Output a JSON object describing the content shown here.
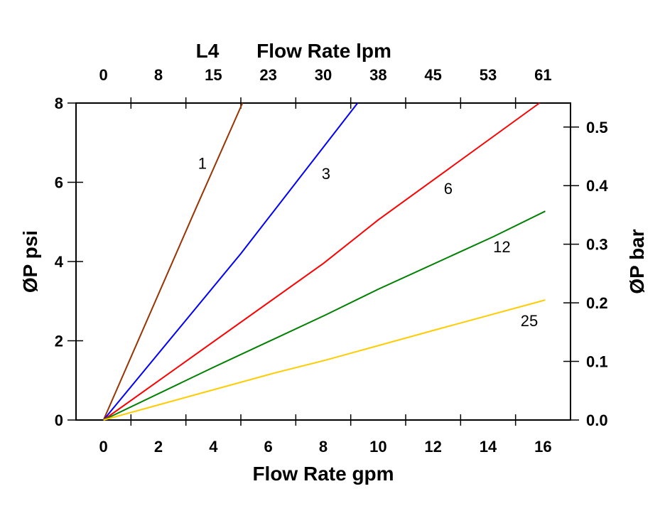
{
  "chart_data": {
    "type": "line",
    "title": "L4",
    "xlabel": "Flow Rate gpm",
    "x2label": "Flow Rate lpm",
    "ylabel": "ØP psi",
    "y2label": "ØP bar",
    "xlim": [
      -1,
      17
    ],
    "ylim": [
      0,
      8
    ],
    "y2lim": [
      0,
      0.541
    ],
    "grid": false,
    "x_ticks": [
      0,
      2,
      4,
      6,
      8,
      10,
      12,
      14,
      16
    ],
    "x_tick_labels": [
      "0",
      "2",
      "4",
      "6",
      "8",
      "10",
      "12",
      "14",
      "16"
    ],
    "x2_tick_labels": [
      "0",
      "8",
      "15",
      "23",
      "30",
      "38",
      "45",
      "53",
      "61"
    ],
    "y_ticks": [
      0,
      2,
      4,
      6,
      8
    ],
    "y_tick_labels": [
      "0",
      "2",
      "4",
      "6",
      "8"
    ],
    "y2_ticks": [
      0.0,
      0.1,
      0.2,
      0.3,
      0.4,
      0.5
    ],
    "y2_tick_labels": [
      "0.0",
      "0.1",
      "0.2",
      "0.3",
      "0.4",
      "0.5"
    ],
    "series": [
      {
        "name": "1",
        "color": "#993300",
        "points": [
          [
            0,
            0
          ],
          [
            3.4,
            5.4
          ],
          [
            5.06,
            8
          ]
        ],
        "label_at": [
          3.6,
          6.48
        ]
      },
      {
        "name": "3",
        "color": "#0000ff",
        "points": [
          [
            0,
            0
          ],
          [
            5,
            4.2
          ],
          [
            9.25,
            8
          ]
        ],
        "label_at": [
          8.1,
          6.22
        ]
      },
      {
        "name": "6",
        "color": "#ff0000",
        "points": [
          [
            0,
            0
          ],
          [
            8,
            3.95
          ],
          [
            10,
            5.05
          ],
          [
            15.87,
            8
          ]
        ],
        "label_at": [
          12.55,
          5.85
        ]
      },
      {
        "name": "12",
        "color": "#008000",
        "points": [
          [
            0,
            0
          ],
          [
            4,
            1.33
          ],
          [
            8.08,
            2.65
          ],
          [
            10,
            3.3
          ],
          [
            14.2,
            4.63
          ],
          [
            16.08,
            5.27
          ]
        ],
        "label_at": [
          14.5,
          4.38
        ]
      },
      {
        "name": "25",
        "color": "#ffcc00",
        "points": [
          [
            0,
            0
          ],
          [
            6.19,
            1.18
          ],
          [
            8.08,
            1.51
          ],
          [
            12,
            2.26
          ],
          [
            16.08,
            3.03
          ]
        ],
        "label_at": [
          15.5,
          2.51
        ]
      }
    ]
  }
}
